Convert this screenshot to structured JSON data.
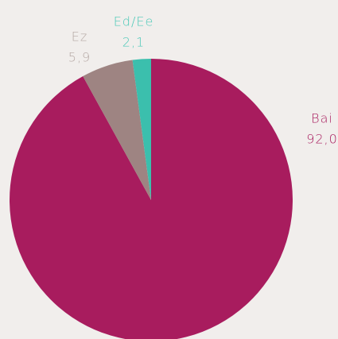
{
  "chart_data": {
    "type": "pie",
    "categories": [
      "Bai",
      "Ez",
      "Ed/Ee"
    ],
    "values": [
      92.0,
      5.9,
      2.1
    ],
    "value_labels": [
      "92,0",
      "5,9",
      "2,1"
    ],
    "colors": [
      "#a81c5e",
      "#9e8482",
      "#3bbfad"
    ],
    "label_colors": [
      "#a81c5e",
      "#b5a8a4",
      "#4cc9b8"
    ]
  }
}
